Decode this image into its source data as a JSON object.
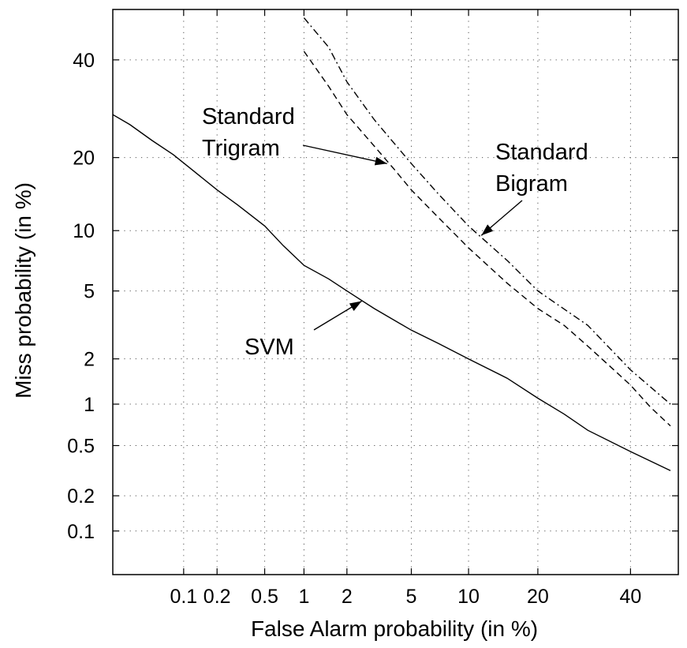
{
  "chart_data": {
    "type": "line",
    "title": "",
    "xlabel": "False Alarm probability (in %)",
    "ylabel": "Miss probability (in %)",
    "x_scale": "probit",
    "y_scale": "probit",
    "xlim": [
      0.02,
      52
    ],
    "ylim": [
      0.04,
      52
    ],
    "grid": true,
    "x_ticks": [
      {
        "v": 0.1,
        "label": "0.1"
      },
      {
        "v": 0.2,
        "label": "0.2"
      },
      {
        "v": 0.5,
        "label": "0.5"
      },
      {
        "v": 1,
        "label": "1"
      },
      {
        "v": 2,
        "label": "2"
      },
      {
        "v": 5,
        "label": "5"
      },
      {
        "v": 10,
        "label": "10"
      },
      {
        "v": 20,
        "label": "20"
      },
      {
        "v": 40,
        "label": "40"
      }
    ],
    "y_ticks": [
      {
        "v": 0.1,
        "label": "0.1"
      },
      {
        "v": 0.2,
        "label": "0.2"
      },
      {
        "v": 0.5,
        "label": "0.5"
      },
      {
        "v": 1,
        "label": "1"
      },
      {
        "v": 2,
        "label": "2"
      },
      {
        "v": 5,
        "label": "5"
      },
      {
        "v": 10,
        "label": "10"
      },
      {
        "v": 20,
        "label": "20"
      },
      {
        "v": 40,
        "label": "40"
      }
    ],
    "series": [
      {
        "key": "svm",
        "style": "solid",
        "x": [
          0.02,
          0.03,
          0.05,
          0.08,
          0.12,
          0.2,
          0.3,
          0.5,
          0.7,
          1.0,
          1.5,
          2.0,
          3.0,
          5.0,
          7.0,
          10.0,
          15.0,
          20.0,
          25.0,
          30.0,
          40.0,
          50.0
        ],
        "y": [
          28,
          26,
          23,
          20.5,
          18,
          15,
          13,
          10.5,
          8.5,
          6.8,
          5.8,
          5.0,
          4.0,
          3.0,
          2.5,
          2.0,
          1.5,
          1.1,
          0.85,
          0.65,
          0.45,
          0.32
        ]
      },
      {
        "key": "trigram",
        "style": "dashed",
        "x": [
          1.0,
          1.5,
          2.0,
          3.0,
          4.0,
          5.0,
          7.0,
          10.0,
          15.0,
          20.0,
          25.0,
          30.0,
          35.0,
          40.0,
          45.0,
          50.0
        ],
        "y": [
          42,
          34,
          28,
          22,
          18,
          15,
          11.5,
          8.3,
          5.5,
          4.0,
          3.2,
          2.4,
          1.8,
          1.35,
          0.95,
          0.7
        ]
      },
      {
        "key": "bigram",
        "style": "dashdot",
        "x": [
          1.0,
          1.5,
          2.0,
          3.0,
          5.0,
          7.0,
          10.0,
          15.0,
          20.0,
          30.0,
          40.0,
          50.0
        ],
        "y": [
          50,
          43,
          35,
          27,
          19,
          14.5,
          10.5,
          7.2,
          5.0,
          3.2,
          1.7,
          1.0
        ]
      }
    ],
    "annotations": [
      {
        "key": "trigram",
        "lines": [
          "Standard",
          "Trigram"
        ],
        "arrow_to": {
          "x": 3.6,
          "y": 19
        }
      },
      {
        "key": "bigram",
        "lines": [
          "Standard",
          "Bigram"
        ],
        "arrow_to": {
          "x": 11.5,
          "y": 9.5
        }
      },
      {
        "key": "svm",
        "lines": [
          "SVM"
        ],
        "arrow_to": {
          "x": 2.5,
          "y": 4.4
        }
      }
    ]
  }
}
